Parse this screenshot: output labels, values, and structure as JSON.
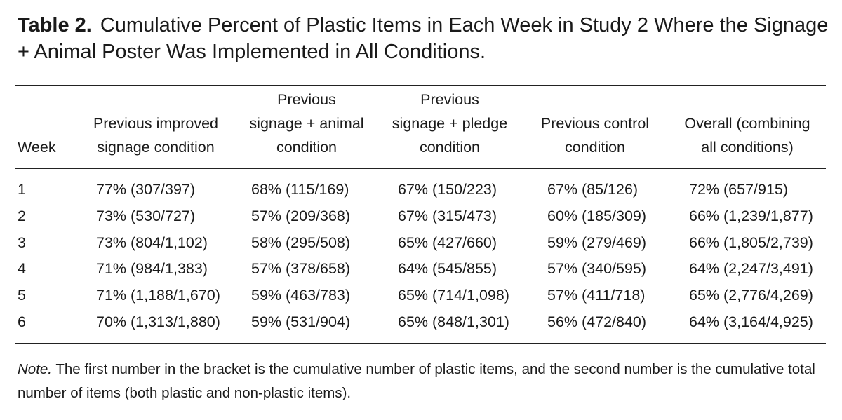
{
  "header": {
    "label": "Table 2.",
    "title": "Cumulative Percent of Plastic Items in Each Week in Study 2 Where the Signage + Animal Poster Was Implemented in All Conditions."
  },
  "table": {
    "columns": [
      [
        "Week"
      ],
      [
        "Previous improved",
        "signage condition"
      ],
      [
        "Previous",
        "signage + animal",
        "condition"
      ],
      [
        "Previous",
        "signage + pledge",
        "condition"
      ],
      [
        "Previous control",
        "condition"
      ],
      [
        "Overall (combining",
        "all conditions)"
      ]
    ],
    "rows": [
      [
        "1",
        "77% (307/397)",
        "68% (115/169)",
        "67% (150/223)",
        "67% (85/126)",
        "72% (657/915)"
      ],
      [
        "2",
        "73% (530/727)",
        "57% (209/368)",
        "67% (315/473)",
        "60% (185/309)",
        "66% (1,239/1,877)"
      ],
      [
        "3",
        "73% (804/1,102)",
        "58% (295/508)",
        "65% (427/660)",
        "59% (279/469)",
        "66% (1,805/2,739)"
      ],
      [
        "4",
        "71% (984/1,383)",
        "57% (378/658)",
        "64% (545/855)",
        "57% (340/595)",
        "64% (2,247/3,491)"
      ],
      [
        "5",
        "71% (1,188/1,670)",
        "59% (463/783)",
        "65% (714/1,098)",
        "57% (411/718)",
        "65% (2,776/4,269)"
      ],
      [
        "6",
        "70% (1,313/1,880)",
        "59% (531/904)",
        "65% (848/1,301)",
        "56% (472/840)",
        "64% (3,164/4,925)"
      ]
    ]
  },
  "note": {
    "label": "Note.",
    "text": "The first number in the bracket is the cumulative number of plastic items, and the second number is the cumulative total number of items (both plastic and non-plastic items)."
  }
}
